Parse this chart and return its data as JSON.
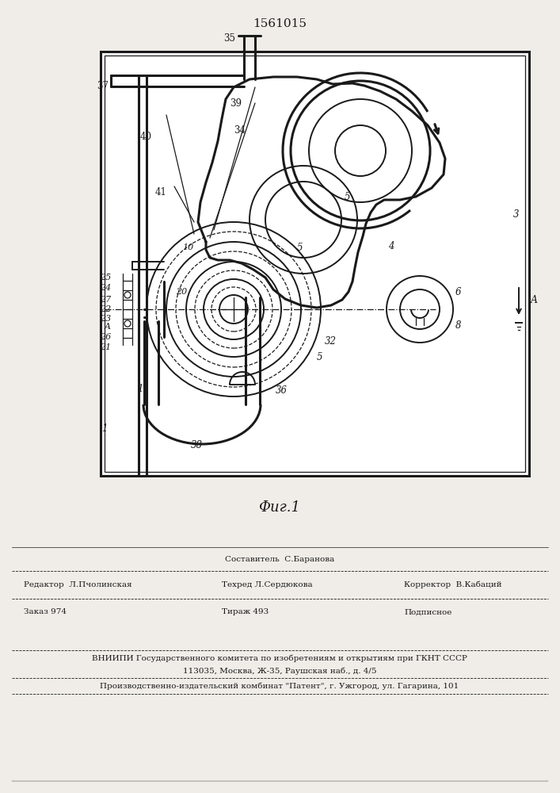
{
  "patent_number": "1561015",
  "fig_label": "Фиг.1",
  "bg_color": "#f0ede8",
  "line_color": "#1a1a1a",
  "footer": {
    "line1_left": "Редактор  Л.Пчолинская",
    "line1_center": "Техред Л.Сердюкова",
    "line1_center_top": "Составитель  С.Баранова",
    "line1_right": "Корректор  В.Кабаций",
    "line2_left": "Заказ 974",
    "line2_center": "Тираж 493",
    "line2_right": "Подписное",
    "line3": "ВНИИПИ Государственного комитета по изобретениям и открытиям при ГКНТ СССР",
    "line4": "113035, Москва, Ж-35, Раушская наб., д. 4/5",
    "line5": "Производственно-издательский комбинат \"Патент\", г. Ужгород, ул. Гагарина, 101"
  }
}
